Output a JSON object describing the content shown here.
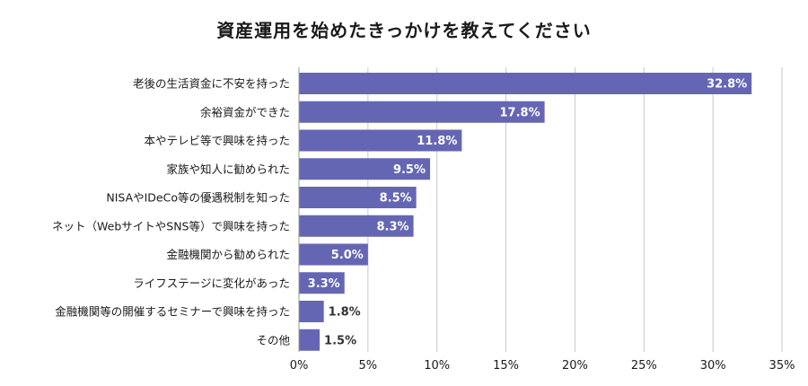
{
  "chart_data": {
    "type": "bar",
    "orientation": "horizontal",
    "title": "資産運用を始めたきっかけを教えてください",
    "xlabel": "",
    "ylabel": "",
    "categories": [
      "老後の生活資金に不安を持った",
      "余裕資金ができた",
      "本やテレビ等で興味を持った",
      "家族や知人に勧められた",
      "NISAやIDeCo等の優遇税制を知った",
      "ネット（WebサイトやSNS等）で興味を持った",
      "金融機関から勧められた",
      "ライフステージに変化があった",
      "金融機関等の開催するセミナーで興味を持った",
      "その他"
    ],
    "values": [
      32.8,
      17.8,
      11.8,
      9.5,
      8.5,
      8.3,
      5.0,
      3.3,
      1.8,
      1.5
    ],
    "value_labels": [
      "32.8%",
      "17.8%",
      "11.8%",
      "9.5%",
      "8.5%",
      "8.3%",
      "5.0%",
      "3.3%",
      "1.8%",
      "1.5%"
    ],
    "xlim": [
      0,
      35
    ],
    "x_ticks": [
      0,
      5,
      10,
      15,
      20,
      25,
      30,
      35
    ],
    "x_tick_labels": [
      "0%",
      "5%",
      "10%",
      "15%",
      "20%",
      "25%",
      "30%",
      "35%"
    ],
    "grid": true,
    "legend": "none",
    "bar_color": "#6566b3",
    "label_inside_color": "#ffffff",
    "label_outside_color": "#333333",
    "grid_color": "#c8c8c8"
  }
}
